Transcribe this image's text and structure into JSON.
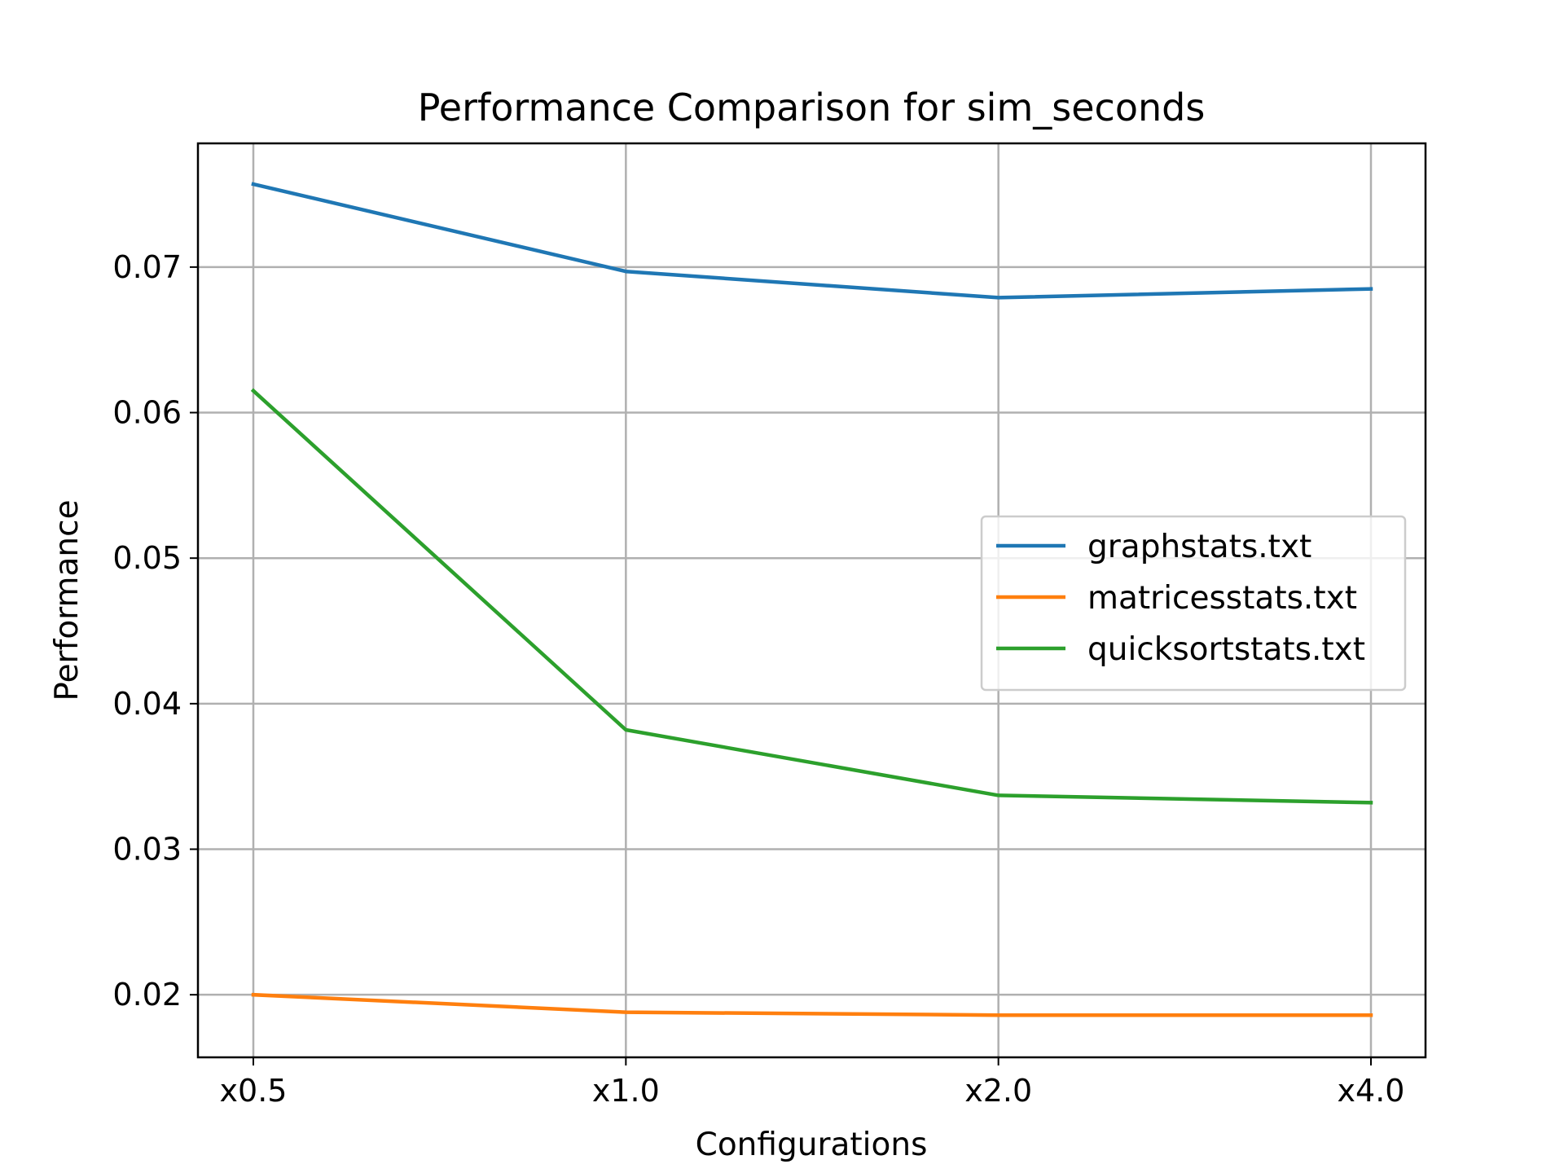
{
  "chart_data": {
    "type": "line",
    "title": "Performance Comparison for sim_seconds",
    "xlabel": "Configurations",
    "ylabel": "Performance",
    "categories": [
      "x0.5",
      "x1.0",
      "x2.0",
      "x4.0"
    ],
    "yticks": [
      0.02,
      0.03,
      0.04,
      0.05,
      0.06,
      0.07
    ],
    "ytick_labels": [
      "0.02",
      "0.03",
      "0.04",
      "0.05",
      "0.06",
      "0.07"
    ],
    "ylim": [
      0.0157,
      0.0785
    ],
    "grid": true,
    "legend_position": "center-right",
    "series": [
      {
        "name": "graphstats.txt",
        "color": "#1f77b4",
        "values": [
          0.0757,
          0.0697,
          0.0679,
          0.0685
        ]
      },
      {
        "name": "matricesstats.txt",
        "color": "#ff7f0e",
        "values": [
          0.02,
          0.0188,
          0.0186,
          0.0186
        ]
      },
      {
        "name": "quicksortstats.txt",
        "color": "#2ca02c",
        "values": [
          0.0615,
          0.0382,
          0.0337,
          0.0332
        ]
      }
    ]
  }
}
